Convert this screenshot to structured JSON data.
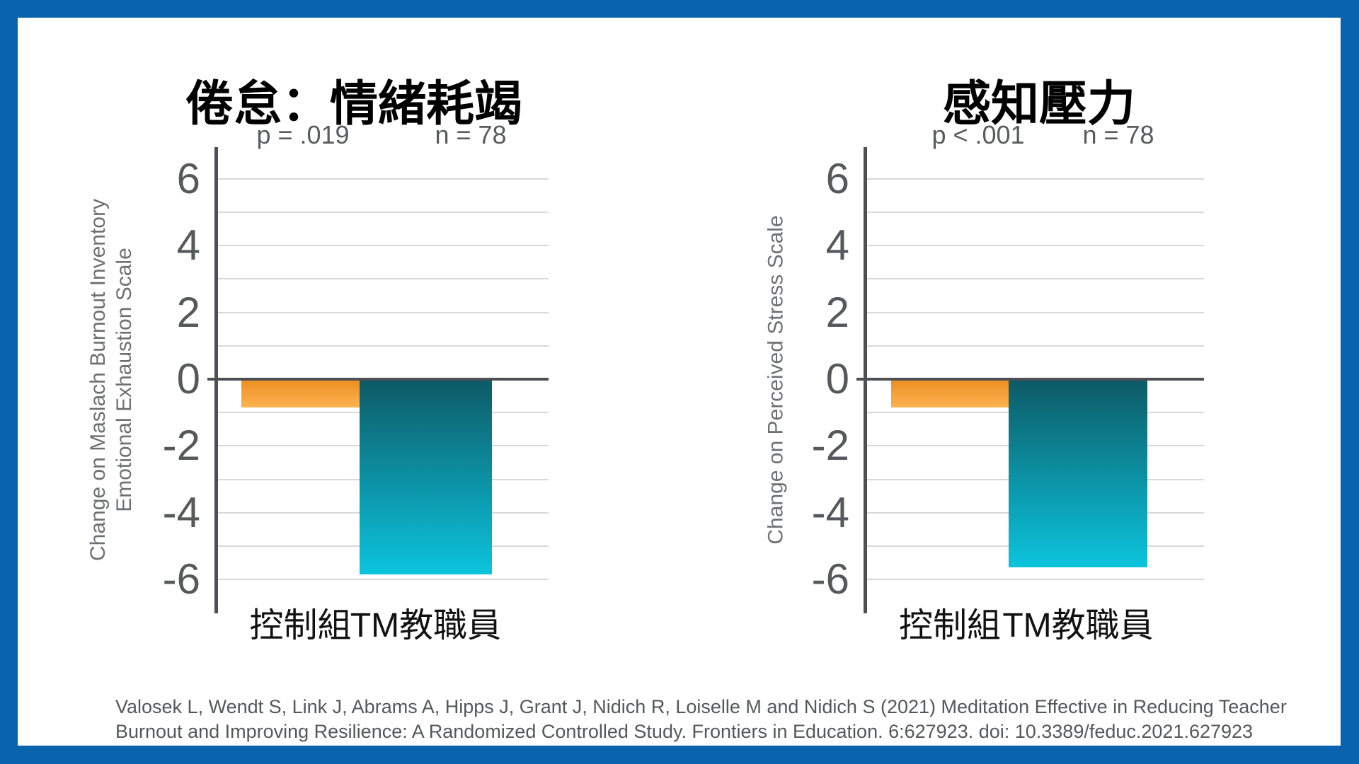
{
  "page": {
    "border_color": "#0a63ad",
    "background": "#ffffff"
  },
  "colors": {
    "axis": "#4d4f52",
    "gridline": "#d9d9d9",
    "tick_label": "#56585c",
    "stats_text": "#595b5e",
    "ylabel_text": "#6e6f72",
    "citation_text": "#55575a",
    "title_text": "#000000",
    "category_text": "#111111",
    "control_bar_top": "#ee8f23",
    "control_bar_bottom": "#fcb350",
    "tm_bar_top": "#0d5b66",
    "tm_bar_bottom": "#0cc4de"
  },
  "chart_data": [
    {
      "type": "bar",
      "title": "倦怠：情緒耗竭",
      "stats": {
        "p": "p = .019",
        "n": "n = 78"
      },
      "ylabel_lines": [
        "Change on Maslach Burnout Inventory",
        "Emotional Exhaustion Scale"
      ],
      "categories": [
        "控制組",
        "TM教職員"
      ],
      "values": [
        -0.8,
        -5.8
      ],
      "ylim": [
        -7,
        7
      ],
      "grid": {
        "min": -6,
        "max": 6,
        "step": 1
      },
      "tick_label_step": 2,
      "grid_on": true,
      "legend": "none",
      "bar_colors": [
        {
          "top": "#ee8f23",
          "bottom": "#fcb350"
        },
        {
          "top": "#0d5b66",
          "bottom": "#0cc4de"
        }
      ]
    },
    {
      "type": "bar",
      "title": "感知壓力",
      "stats": {
        "p": "p < .001",
        "n": "n = 78"
      },
      "ylabel_lines": [
        "Change on Perceived Stress Scale"
      ],
      "categories": [
        "控制組",
        "TM教職員"
      ],
      "values": [
        -0.8,
        -5.6
      ],
      "ylim": [
        -7,
        7
      ],
      "grid": {
        "min": -6,
        "max": 6,
        "step": 1
      },
      "tick_label_step": 2,
      "grid_on": true,
      "legend": "none",
      "bar_colors": [
        {
          "top": "#ee8f23",
          "bottom": "#fcb350"
        },
        {
          "top": "#0d5b66",
          "bottom": "#0cc4de"
        }
      ]
    }
  ],
  "citation": {
    "lines": [
      "Valosek L, Wendt S, Link J, Abrams A, Hipps J, Grant J, Nidich R, Loiselle M and Nidich S (2021) Meditation Effective in Reducing Teacher",
      "Burnout and Improving Resilience: A Randomized Controlled Study. Frontiers in Education. 6:627923. doi: 10.3389/feduc.2021.627923"
    ]
  }
}
